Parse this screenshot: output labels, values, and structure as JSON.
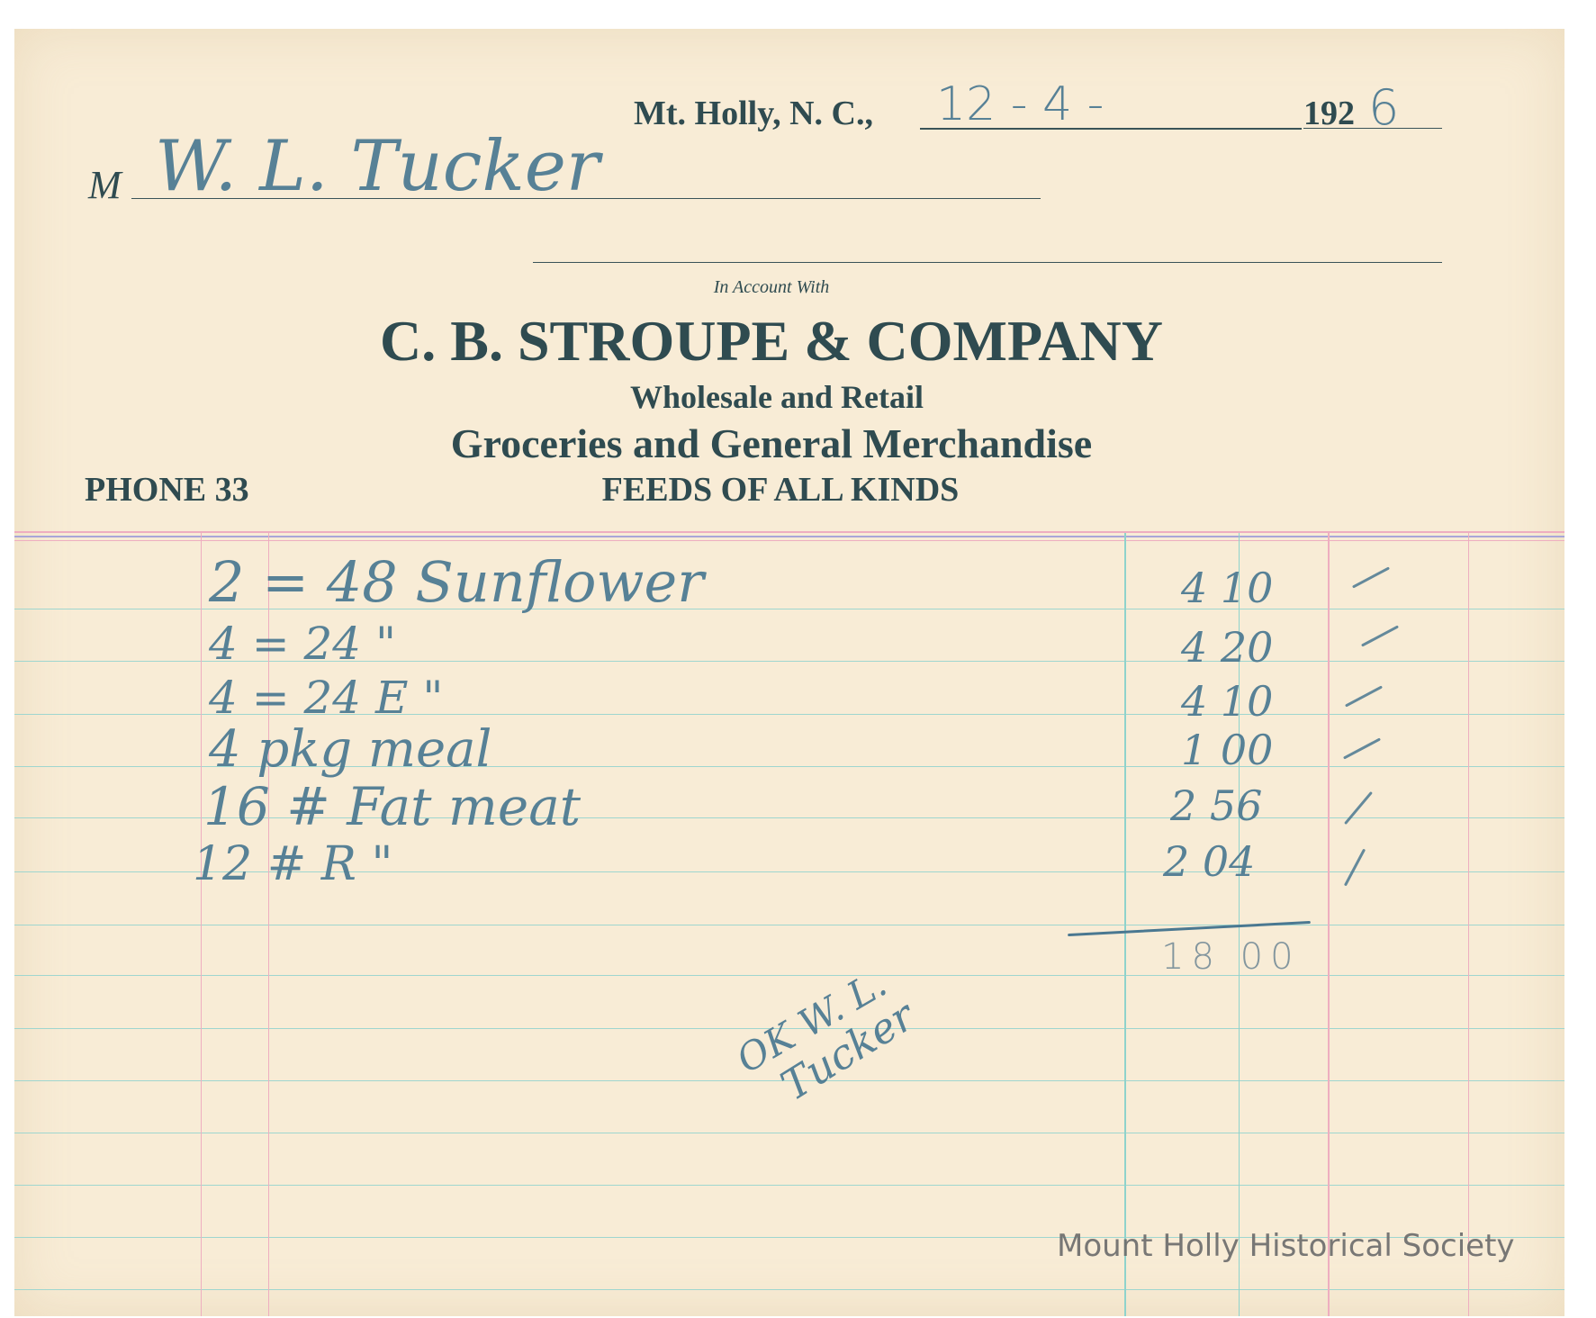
{
  "header": {
    "place": "Mt. Holly, N. C.,",
    "date_handwritten": "12 - 4 -",
    "year_printed": "192",
    "year_handwritten": "6",
    "customer_prefix": "M",
    "customer_name": "W. L. Tucker",
    "in_account_with": "In Account With",
    "company": "C. B. STROUPE & COMPANY",
    "tagline1": "Wholesale and Retail",
    "tagline2": "Groceries and General Merchandise",
    "tagline3": "FEEDS OF ALL KINDS",
    "phone": "PHONE 33"
  },
  "items": [
    {
      "description": "2 = 48 Sunflower",
      "amount": "4 10"
    },
    {
      "description": "4 = 24       \"",
      "amount": "4 20"
    },
    {
      "description": "4 = 24 E        \"",
      "amount": "4 10"
    },
    {
      "description": "4 pkg meal",
      "amount": "1 00"
    },
    {
      "description": "16 # Fat meat",
      "amount": "2 56"
    },
    {
      "description": "12 # R      \"",
      "amount": "2 04"
    }
  ],
  "total": "18 00",
  "approval": [
    "OK W. L.",
    "Tucker"
  ],
  "watermark": "Mount Holly Historical Society",
  "colors": {
    "paper": "#f8ecd6",
    "print": "#2f4b50",
    "pencil": "#4a7891",
    "rule_teal": "#8fd3cc",
    "rule_pink": "#eeaec0"
  }
}
